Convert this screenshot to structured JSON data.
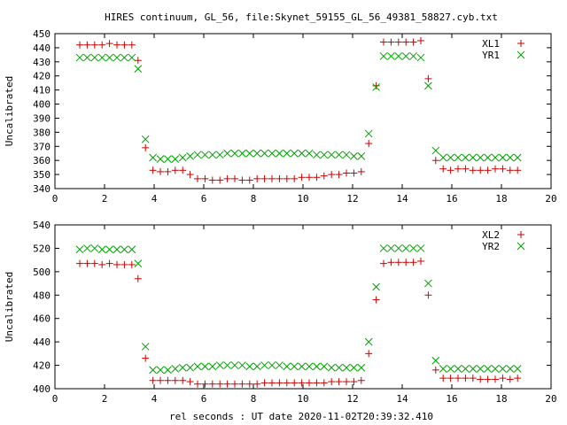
{
  "title": "HIRES continuum, GL_56, file:Skynet_59155_GL_56_49381_58827.cyb.txt",
  "xlabel": "rel seconds : UT date 2020-11-02T20:39:32.410",
  "colors": {
    "red": "#cc0000",
    "green": "#00a000"
  },
  "chart_data": [
    {
      "type": "scatter",
      "ylabel": "Uncalibrated",
      "xlim": [
        0,
        20
      ],
      "ylim": [
        340,
        450
      ],
      "xticks": [
        0,
        2,
        4,
        6,
        8,
        10,
        12,
        14,
        16,
        18,
        20
      ],
      "yticks": [
        340,
        350,
        360,
        370,
        380,
        390,
        400,
        410,
        420,
        430,
        440,
        450
      ],
      "grid": false,
      "legend_position": "top-right",
      "series": [
        {
          "name": "XL1",
          "marker": "plus",
          "color": "#cc0000",
          "x": [
            1.0,
            1.3,
            1.6,
            1.9,
            2.2,
            2.5,
            2.8,
            3.1,
            3.35,
            3.65,
            3.95,
            4.25,
            4.55,
            4.85,
            5.15,
            5.45,
            5.75,
            6.05,
            6.35,
            6.65,
            6.95,
            7.25,
            7.55,
            7.85,
            8.15,
            8.45,
            8.75,
            9.05,
            9.35,
            9.65,
            9.95,
            10.25,
            10.55,
            10.85,
            11.15,
            11.45,
            11.75,
            12.05,
            12.35,
            12.65,
            12.95,
            13.25,
            13.55,
            13.85,
            14.15,
            14.45,
            14.75,
            15.05,
            15.35,
            15.65,
            15.95,
            16.25,
            16.55,
            16.85,
            17.15,
            17.45,
            17.75,
            18.05,
            18.35,
            18.65
          ],
          "y": [
            442,
            442,
            442,
            442,
            443,
            442,
            442,
            442,
            431,
            369,
            353,
            352,
            352,
            353,
            353,
            350,
            347,
            347,
            346,
            346,
            347,
            347,
            346,
            346,
            347,
            347,
            347,
            347,
            347,
            347,
            348,
            348,
            348,
            349,
            350,
            350,
            351,
            351,
            352,
            372,
            413,
            444,
            444,
            444,
            444,
            444,
            445,
            418,
            360,
            354,
            353,
            354,
            354,
            353,
            353,
            353,
            354,
            354,
            353,
            353
          ]
        },
        {
          "name": "YR1",
          "marker": "cross",
          "color": "#00a000",
          "x": [
            1.0,
            1.3,
            1.6,
            1.9,
            2.2,
            2.5,
            2.8,
            3.1,
            3.35,
            3.65,
            3.95,
            4.25,
            4.55,
            4.85,
            5.15,
            5.45,
            5.75,
            6.05,
            6.35,
            6.65,
            6.95,
            7.25,
            7.55,
            7.85,
            8.15,
            8.45,
            8.75,
            9.05,
            9.35,
            9.65,
            9.95,
            10.25,
            10.55,
            10.85,
            11.15,
            11.45,
            11.75,
            12.05,
            12.35,
            12.65,
            12.95,
            13.25,
            13.55,
            13.85,
            14.15,
            14.45,
            14.75,
            15.05,
            15.35,
            15.65,
            15.95,
            16.25,
            16.55,
            16.85,
            17.15,
            17.45,
            17.75,
            18.05,
            18.35,
            18.65
          ],
          "y": [
            433,
            433,
            433,
            433,
            433,
            433,
            433,
            433,
            425,
            375,
            362,
            361,
            361,
            361,
            362,
            363,
            364,
            364,
            364,
            364,
            365,
            365,
            365,
            365,
            365,
            365,
            365,
            365,
            365,
            365,
            365,
            365,
            364,
            364,
            364,
            364,
            364,
            363,
            363,
            379,
            412,
            434,
            434,
            434,
            434,
            434,
            433,
            413,
            367,
            362,
            362,
            362,
            362,
            362,
            362,
            362,
            362,
            362,
            362,
            362
          ]
        }
      ]
    },
    {
      "type": "scatter",
      "ylabel": "Uncalibrated",
      "xlim": [
        0,
        20
      ],
      "ylim": [
        400,
        540
      ],
      "xticks": [
        0,
        2,
        4,
        6,
        8,
        10,
        12,
        14,
        16,
        18,
        20
      ],
      "yticks": [
        400,
        420,
        440,
        460,
        480,
        500,
        520,
        540
      ],
      "grid": false,
      "legend_position": "top-right",
      "series": [
        {
          "name": "XL2",
          "marker": "plus",
          "color": "#cc0000",
          "x": [
            1.0,
            1.3,
            1.6,
            1.9,
            2.2,
            2.5,
            2.8,
            3.1,
            3.35,
            3.65,
            3.95,
            4.25,
            4.55,
            4.85,
            5.15,
            5.45,
            5.75,
            6.05,
            6.35,
            6.65,
            6.95,
            7.25,
            7.55,
            7.85,
            8.15,
            8.45,
            8.75,
            9.05,
            9.35,
            9.65,
            9.95,
            10.25,
            10.55,
            10.85,
            11.15,
            11.45,
            11.75,
            12.05,
            12.35,
            12.65,
            12.95,
            13.25,
            13.55,
            13.85,
            14.15,
            14.45,
            14.75,
            15.05,
            15.35,
            15.65,
            15.95,
            16.25,
            16.55,
            16.85,
            17.15,
            17.45,
            17.75,
            18.05,
            18.35,
            18.65
          ],
          "y": [
            507,
            507,
            507,
            506,
            507,
            506,
            506,
            506,
            494,
            426,
            407,
            407,
            407,
            407,
            407,
            406,
            404,
            404,
            404,
            404,
            404,
            404,
            404,
            404,
            404,
            405,
            405,
            405,
            405,
            405,
            405,
            405,
            405,
            405,
            406,
            406,
            406,
            406,
            407,
            430,
            476,
            507,
            508,
            508,
            508,
            508,
            509,
            480,
            416,
            409,
            409,
            409,
            409,
            409,
            408,
            408,
            408,
            409,
            408,
            409
          ]
        },
        {
          "name": "YR2",
          "marker": "cross",
          "color": "#00a000",
          "x": [
            1.0,
            1.3,
            1.6,
            1.9,
            2.2,
            2.5,
            2.8,
            3.1,
            3.35,
            3.65,
            3.95,
            4.25,
            4.55,
            4.85,
            5.15,
            5.45,
            5.75,
            6.05,
            6.35,
            6.65,
            6.95,
            7.25,
            7.55,
            7.85,
            8.15,
            8.45,
            8.75,
            9.05,
            9.35,
            9.65,
            9.95,
            10.25,
            10.55,
            10.85,
            11.15,
            11.45,
            11.75,
            12.05,
            12.35,
            12.65,
            12.95,
            13.25,
            13.55,
            13.85,
            14.15,
            14.45,
            14.75,
            15.05,
            15.35,
            15.65,
            15.95,
            16.25,
            16.55,
            16.85,
            17.15,
            17.45,
            17.75,
            18.05,
            18.35,
            18.65
          ],
          "y": [
            519,
            520,
            520,
            519,
            519,
            519,
            519,
            519,
            507,
            436,
            416,
            416,
            416,
            417,
            418,
            418,
            419,
            419,
            419,
            420,
            420,
            420,
            420,
            419,
            419,
            420,
            420,
            420,
            419,
            419,
            419,
            419,
            419,
            419,
            418,
            418,
            418,
            418,
            418,
            440,
            487,
            520,
            520,
            520,
            520,
            520,
            520,
            490,
            424,
            417,
            417,
            417,
            417,
            417,
            417,
            417,
            417,
            417,
            417,
            417
          ]
        }
      ]
    }
  ]
}
